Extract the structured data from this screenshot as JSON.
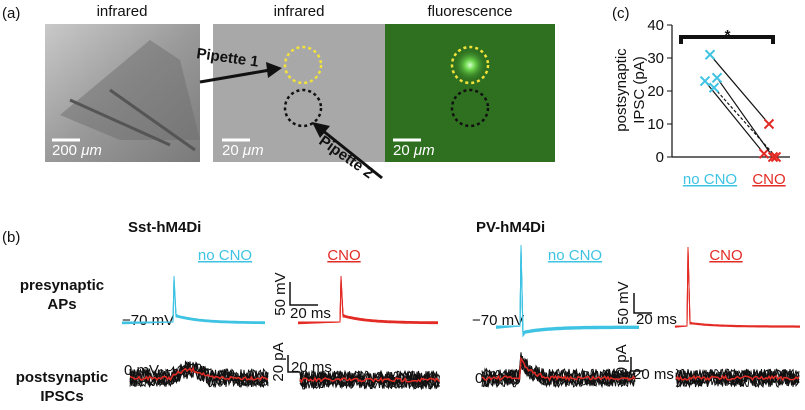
{
  "panel_a": {
    "label": "(a)",
    "image_titles": [
      "infrared",
      "infrared",
      "fluorescence"
    ],
    "pipettes": [
      "Pipette 1",
      "Pipette 2"
    ],
    "scale_bars": [
      "200",
      "20",
      "20"
    ],
    "unit": "μm"
  },
  "panel_b": {
    "label": "(b)",
    "groups": [
      "Sst-hM4Di",
      "PV-hM4Di"
    ],
    "conditions": [
      "no CNO",
      "CNO"
    ],
    "rows": [
      [
        "presynaptic",
        "APs"
      ],
      [
        "postsynaptic",
        "IPSCs"
      ]
    ],
    "voltage_labels": [
      "−70 mV",
      "0 mV"
    ],
    "scale_labels": [
      "50 mV",
      "20 ms",
      "20 pA"
    ]
  },
  "chart_data": {
    "type": "paired-scatter",
    "label": "(c)",
    "y_label": [
      "postsynaptic",
      "IPSC (pA)"
    ],
    "categories": [
      "no CNO",
      "CNO"
    ],
    "category_colors": [
      "#3ec3e3",
      "#e32b25"
    ],
    "series": [
      {
        "values": [
          31,
          10
        ]
      },
      {
        "values": [
          23,
          1
        ]
      },
      {
        "values": [
          24,
          0
        ]
      },
      {
        "values": [
          21,
          0
        ],
        "dashed": true
      }
    ],
    "ylim": [
      0,
      40
    ],
    "yticks": [
      0,
      10,
      20,
      30,
      40
    ],
    "significance": "*"
  }
}
